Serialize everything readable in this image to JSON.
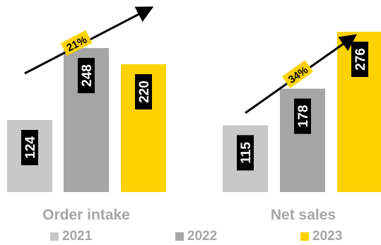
{
  "chart_data": {
    "type": "bar",
    "groups": [
      {
        "label": "Order intake",
        "growth": "21%"
      },
      {
        "label": "Net sales",
        "growth": "34%"
      }
    ],
    "series": [
      {
        "name": "2021",
        "color": "#c8c8c8",
        "values": [
          124,
          115
        ]
      },
      {
        "name": "2022",
        "color": "#a6a6a6",
        "values": [
          248,
          178
        ]
      },
      {
        "name": "2023",
        "color": "#ffd200",
        "values": [
          220,
          276
        ]
      }
    ],
    "ylim": [
      0,
      276
    ],
    "grid": false,
    "legend": "bottom",
    "colors": {
      "label_box": "#000000",
      "label_text": "#ffffff",
      "axis_label": "#a6a6a6",
      "arrow": "#000000",
      "growth_box": "#ffd200"
    }
  }
}
